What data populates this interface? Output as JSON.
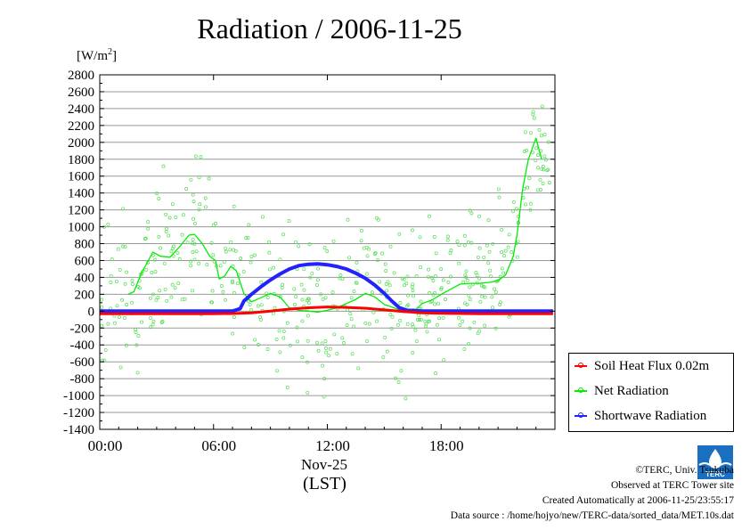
{
  "title": "Radiation / 2006-11-25",
  "unit_label_base": "[W/m",
  "unit_label_sup": "2",
  "unit_label_end": "]",
  "x_date_label": "Nov-25",
  "x_unit_label": "(LST)",
  "credits": {
    "copyright": "©TERC, Univ. Tsukuba",
    "observed": "Observed at TERC Tower site",
    "created": "Created Automatically at 2006-11-25/23:55:17",
    "source": "Data source : /home/hojyo/new/TERC-data/sorted_data/MET.10s.dat"
  },
  "logo_text": "TERC",
  "chart_data": {
    "type": "line",
    "title": "Radiation / 2006-11-25",
    "xlabel": "Nov-25 (LST)",
    "ylabel": "[W/m2]",
    "xlim": [
      0,
      24
    ],
    "ylim": [
      -1400,
      2800
    ],
    "x_ticks": [
      0,
      6,
      12,
      18
    ],
    "x_tick_labels": [
      "00:00",
      "06:00",
      "12:00",
      "18:00"
    ],
    "y_ticks": [
      -1400,
      -1200,
      -1000,
      -800,
      -600,
      -400,
      -200,
      0,
      200,
      400,
      600,
      800,
      1000,
      1200,
      1400,
      1600,
      1800,
      2000,
      2200,
      2400,
      2600,
      2800
    ],
    "y_tick_labels": [
      "-1400",
      "-1200",
      "-1000",
      "-800",
      "-600",
      "-400",
      "-200",
      "0",
      "200",
      "400",
      "600",
      "800",
      "1000",
      "1200",
      "1400",
      "1600",
      "1800",
      "2000",
      "2200",
      "2400",
      "2600",
      "2800"
    ],
    "grid": true,
    "legend_position": "bottom-right outside",
    "series": [
      {
        "name": "Soil Heat Flux 0.02m",
        "color": "#ff0000",
        "x": [
          0,
          2,
          4,
          6,
          7,
          8,
          9,
          10,
          11,
          12,
          13,
          14,
          15,
          16,
          17,
          18,
          20,
          22,
          23.9
        ],
        "y": [
          -30,
          -30,
          -30,
          -30,
          -28,
          -20,
          0,
          25,
          40,
          50,
          45,
          35,
          15,
          -5,
          -20,
          -25,
          -30,
          -30,
          -30
        ]
      },
      {
        "name": "Net Radiation",
        "color": "#00ee00",
        "x": [
          1.5,
          1.8,
          2.2,
          2.8,
          3.2,
          3.7,
          4.2,
          4.7,
          5.0,
          5.4,
          5.8,
          6.1,
          6.3,
          6.6,
          6.9,
          7.2,
          7.6,
          8.0,
          8.5,
          9.0,
          9.5,
          10.0,
          10.5,
          11.0,
          11.5,
          12.0,
          12.5,
          13.0,
          13.5,
          14.0,
          14.5,
          15.0,
          15.5,
          16.0,
          16.5,
          17.0,
          17.5,
          18.0,
          18.5,
          19.0,
          19.5,
          20.0,
          20.5,
          21.0,
          21.4,
          21.8,
          22.0,
          22.3,
          22.6,
          23.0,
          23.3
        ],
        "y": [
          200,
          230,
          450,
          700,
          650,
          640,
          760,
          900,
          910,
          800,
          650,
          600,
          380,
          420,
          530,
          480,
          210,
          110,
          160,
          210,
          170,
          40,
          10,
          0,
          -10,
          10,
          40,
          90,
          140,
          210,
          170,
          80,
          40,
          0,
          -10,
          90,
          130,
          200,
          260,
          320,
          330,
          330,
          340,
          360,
          430,
          650,
          900,
          1450,
          1800,
          2050,
          1800
        ]
      },
      {
        "name": "Shortwave Radiation",
        "color": "#2222ff",
        "x": [
          0,
          2,
          4,
          6,
          7.0,
          7.4,
          7.6,
          8.0,
          8.5,
          9.0,
          9.5,
          10.0,
          10.5,
          11.0,
          11.5,
          12.0,
          12.5,
          13.0,
          13.5,
          14.0,
          14.5,
          15.0,
          15.4,
          15.8,
          16.2,
          17.0,
          18,
          20,
          22,
          23.9
        ],
        "y": [
          0,
          0,
          0,
          0,
          0,
          30,
          120,
          200,
          290,
          370,
          440,
          500,
          540,
          555,
          560,
          550,
          530,
          500,
          450,
          390,
          310,
          210,
          120,
          40,
          10,
          0,
          0,
          0,
          0,
          0
        ]
      }
    ]
  }
}
